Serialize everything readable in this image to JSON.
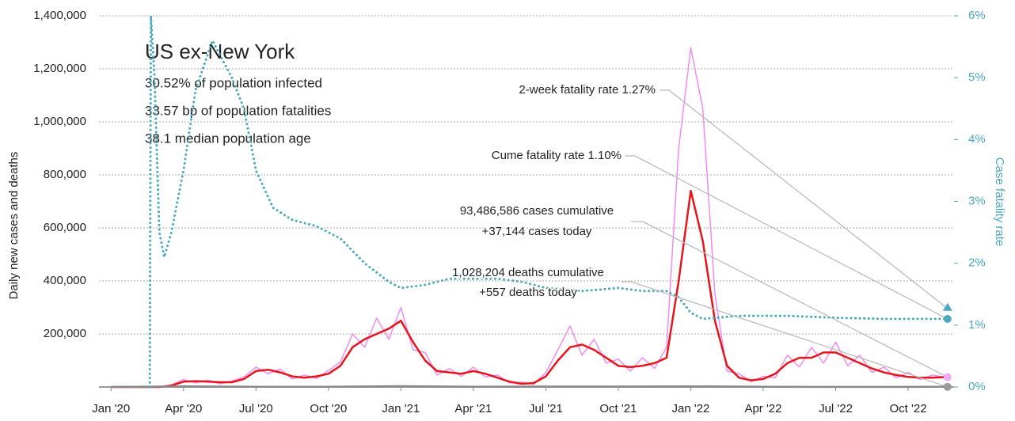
{
  "chart_data": {
    "type": "line",
    "title": "US ex-New York",
    "subtitle_lines": [
      "30.52% of population infected",
      "33.57 bp of population fatalities",
      "38.1 median population age"
    ],
    "ylabel": "Daily new cases and deaths",
    "y2label": "Case fatality rate",
    "xlim": [
      -0.5,
      34.9
    ],
    "xticks": [
      {
        "value": 0,
        "label": "Jan '20"
      },
      {
        "value": 3,
        "label": "Apr '20"
      },
      {
        "value": 6,
        "label": "Jul '20"
      },
      {
        "value": 9,
        "label": "Oct '20"
      },
      {
        "value": 12,
        "label": "Jan '21"
      },
      {
        "value": 15,
        "label": "Apr '21"
      },
      {
        "value": 18,
        "label": "Jul '21"
      },
      {
        "value": 21,
        "label": "Oct '21"
      },
      {
        "value": 24,
        "label": "Jan '22"
      },
      {
        "value": 27,
        "label": "Apr '22"
      },
      {
        "value": 30,
        "label": "Jul '22"
      },
      {
        "value": 33,
        "label": "Oct '22"
      }
    ],
    "ylim": [
      0,
      1400000
    ],
    "yticks": [
      {
        "value": 200000,
        "label": "200,000"
      },
      {
        "value": 400000,
        "label": "400,000"
      },
      {
        "value": 600000,
        "label": "600,000"
      },
      {
        "value": 800000,
        "label": "800,000"
      },
      {
        "value": 1000000,
        "label": "1,000,000"
      },
      {
        "value": 1200000,
        "label": "1,200,000"
      },
      {
        "value": 1400000,
        "label": "1,400,000"
      }
    ],
    "y2lim": [
      0,
      6
    ],
    "y2ticks": [
      {
        "value": 0,
        "label": "0%"
      },
      {
        "value": 1,
        "label": "1%"
      },
      {
        "value": 2,
        "label": "2%"
      },
      {
        "value": 3,
        "label": "3%"
      },
      {
        "value": 4,
        "label": "4%"
      },
      {
        "value": 5,
        "label": "5%"
      },
      {
        "value": 6,
        "label": "6%"
      }
    ],
    "grid": true,
    "series": [
      {
        "color": "#f08cf0",
        "style": "thin",
        "x": [
          0,
          0.5,
          1,
          1.5,
          2,
          2.5,
          3,
          3.5,
          4,
          4.5,
          5,
          5.5,
          6,
          6.5,
          7,
          7.5,
          8,
          8.5,
          9,
          9.5,
          10,
          10.5,
          11,
          11.5,
          12,
          12.5,
          13,
          13.5,
          14,
          14.5,
          15,
          15.5,
          16,
          16.5,
          17,
          17.5,
          18,
          18.5,
          19,
          19.5,
          20,
          20.5,
          21,
          21.5,
          22,
          22.5,
          23,
          23.5,
          24,
          24.5,
          25,
          25.5,
          26,
          26.5,
          27,
          27.5,
          28,
          28.5,
          29,
          29.5,
          30,
          30.5,
          31,
          31.5,
          32,
          32.5,
          33,
          33.5,
          34,
          34.5
        ],
        "values": [
          0,
          0,
          0,
          0,
          0,
          8000,
          28000,
          15000,
          26000,
          12000,
          22000,
          38000,
          75000,
          50000,
          68000,
          30000,
          45000,
          32000,
          62000,
          95000,
          200000,
          150000,
          260000,
          180000,
          300000,
          140000,
          130000,
          45000,
          70000,
          40000,
          75000,
          38000,
          45000,
          15000,
          18000,
          10000,
          55000,
          140000,
          230000,
          120000,
          180000,
          90000,
          105000,
          60000,
          110000,
          70000,
          150000,
          900000,
          1280000,
          1050000,
          350000,
          60000,
          50000,
          20000,
          40000,
          35000,
          120000,
          75000,
          150000,
          90000,
          170000,
          80000,
          120000,
          55000,
          75000,
          35000,
          55000,
          28000,
          45000,
          37144
        ]
      },
      {
        "color": "#e8141c",
        "style": "thick",
        "x": [
          0,
          0.5,
          1,
          1.5,
          2,
          2.5,
          3,
          3.5,
          4,
          4.5,
          5,
          5.5,
          6,
          6.5,
          7,
          7.5,
          8,
          8.5,
          9,
          9.5,
          10,
          10.5,
          11,
          11.5,
          12,
          12.5,
          13,
          13.5,
          14,
          14.5,
          15,
          15.5,
          16,
          16.5,
          17,
          17.5,
          18,
          18.5,
          19,
          19.5,
          20,
          20.5,
          21,
          21.5,
          22,
          22.5,
          23,
          23.5,
          24,
          24.5,
          25,
          25.5,
          26,
          26.5,
          27,
          27.5,
          28,
          28.5,
          29,
          29.5,
          30,
          30.5,
          31,
          31.5,
          32,
          32.5,
          33,
          33.5,
          34,
          34.5
        ],
        "values": [
          0,
          0,
          0,
          0,
          0,
          5000,
          20000,
          22000,
          20000,
          18000,
          18000,
          30000,
          60000,
          65000,
          55000,
          40000,
          35000,
          40000,
          50000,
          80000,
          150000,
          180000,
          200000,
          220000,
          250000,
          170000,
          100000,
          60000,
          55000,
          50000,
          60000,
          50000,
          35000,
          20000,
          12000,
          15000,
          40000,
          100000,
          150000,
          160000,
          140000,
          110000,
          80000,
          75000,
          80000,
          90000,
          110000,
          400000,
          740000,
          550000,
          250000,
          80000,
          35000,
          25000,
          30000,
          50000,
          90000,
          110000,
          110000,
          130000,
          130000,
          110000,
          90000,
          70000,
          55000,
          45000,
          38000,
          35000,
          35000,
          37000
        ]
      },
      {
        "color": "#888888",
        "style": "thick",
        "x": [
          0,
          3,
          6,
          9,
          12,
          15,
          18,
          21,
          24,
          27,
          30,
          33,
          34.5
        ],
        "values": [
          0,
          2000,
          800,
          1000,
          3000,
          1000,
          1500,
          1500,
          2500,
          500,
          400,
          400,
          557
        ]
      },
      {
        "color": "#4aa8bf",
        "style": "dotted",
        "axis": "y2",
        "x": [
          1.6,
          1.65,
          1.8,
          2.0,
          2.2,
          2.5,
          3,
          3.5,
          4.2,
          5,
          5.5,
          6,
          6.7,
          7.5,
          8.5,
          9.5,
          10.5,
          11.5,
          12,
          13,
          14,
          15,
          16,
          17,
          18,
          19.5,
          21,
          22,
          23,
          23.5,
          24,
          24.5,
          26,
          28,
          30,
          32,
          34.5
        ],
        "values": [
          0,
          6,
          5.0,
          2.5,
          2.1,
          2.5,
          3.5,
          4.8,
          5.6,
          5.0,
          4.5,
          3.5,
          2.9,
          2.7,
          2.6,
          2.4,
          2.0,
          1.7,
          1.6,
          1.65,
          1.75,
          1.75,
          1.75,
          1.7,
          1.6,
          1.55,
          1.6,
          1.55,
          1.55,
          1.45,
          1.2,
          1.1,
          1.15,
          1.15,
          1.12,
          1.1,
          1.1
        ]
      }
    ],
    "end_markers": {
      "two_week_fatality_rate": 1.27,
      "cume_fatality_rate": 1.1
    },
    "annotations": [
      "2-week fatality rate 1.27%",
      "Cume fatality rate 1.10%",
      "93,486,586 cases cumulative",
      "+37,144 cases today",
      "1,028,204 deaths cumulative",
      "+557 deaths today"
    ]
  }
}
